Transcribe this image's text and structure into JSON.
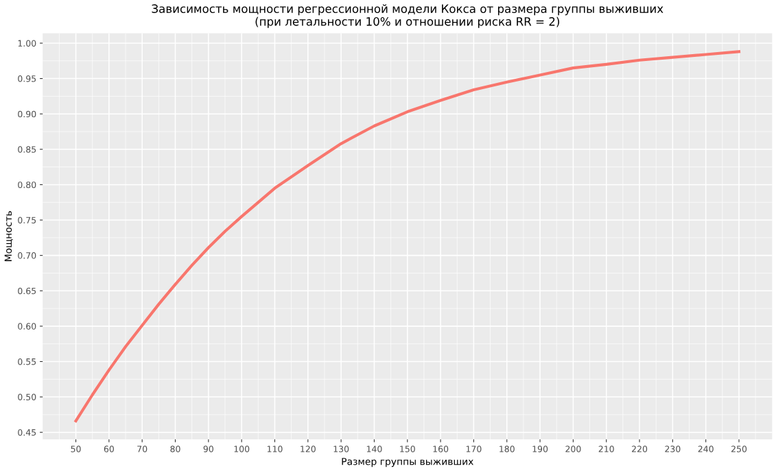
{
  "chart_data": {
    "type": "line",
    "title": "Зависимость мощности регрессионной модели Кокса от размера группы выживших\n(при летальности 10% и отношении риска RR = 2)",
    "xlabel": "Размер группы выживших",
    "ylabel": "Мощность",
    "x": [
      50,
      55,
      60,
      65,
      70,
      75,
      80,
      85,
      90,
      95,
      100,
      110,
      120,
      130,
      140,
      150,
      160,
      170,
      180,
      190,
      200,
      210,
      220,
      230,
      240,
      250
    ],
    "series": [
      {
        "color": "#f8766d",
        "values": [
          0.466,
          0.503,
          0.538,
          0.571,
          0.601,
          0.631,
          0.659,
          0.686,
          0.711,
          0.734,
          0.755,
          0.795,
          0.827,
          0.858,
          0.883,
          0.903,
          0.919,
          0.934,
          0.945,
          0.955,
          0.965,
          0.97,
          0.976,
          0.98,
          0.984,
          0.988
        ]
      }
    ],
    "xlim": [
      40,
      260
    ],
    "ylim": [
      0.44,
      1.014
    ],
    "xticks": [
      50,
      60,
      70,
      80,
      90,
      100,
      110,
      120,
      130,
      140,
      150,
      160,
      170,
      180,
      190,
      200,
      210,
      220,
      230,
      240,
      250
    ],
    "yticks": [
      {
        "value": 0.45,
        "label": "0.45"
      },
      {
        "value": 0.5,
        "label": "0.50"
      },
      {
        "value": 0.55,
        "label": "0.55"
      },
      {
        "value": 0.6,
        "label": "0.60"
      },
      {
        "value": 0.65,
        "label": "0.65"
      },
      {
        "value": 0.7,
        "label": "0.70"
      },
      {
        "value": 0.75,
        "label": "0.75"
      },
      {
        "value": 0.8,
        "label": "0.80"
      },
      {
        "value": 0.85,
        "label": "0.85"
      },
      {
        "value": 0.9,
        "label": "0.90"
      },
      {
        "value": 0.95,
        "label": "0.95"
      },
      {
        "value": 1.0,
        "label": "1.00"
      }
    ],
    "grid": true,
    "line_style": "solid"
  }
}
